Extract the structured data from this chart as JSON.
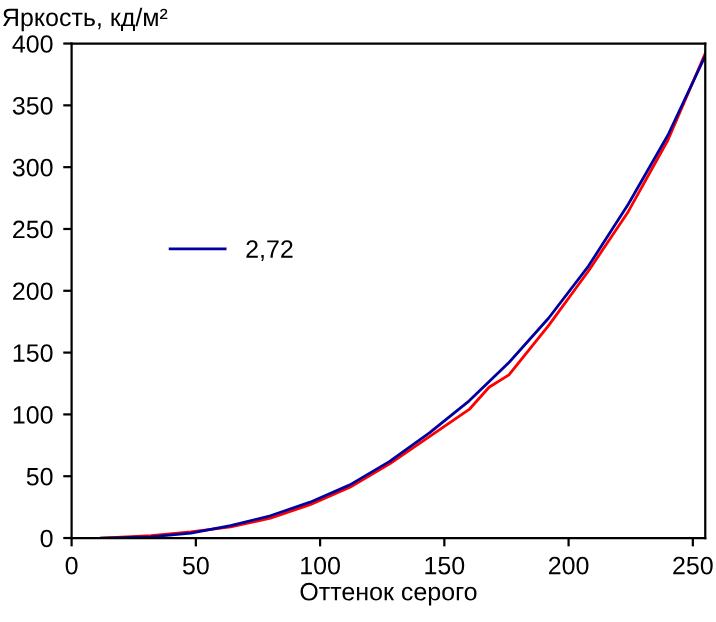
{
  "chart_data": {
    "type": "line",
    "ylabel": "Яркость, кд/м²",
    "xlabel": "Оттенок серого",
    "xlim": [
      0,
      255
    ],
    "ylim": [
      0,
      400
    ],
    "xticks": [
      0,
      50,
      100,
      150,
      200,
      250
    ],
    "yticks": [
      0,
      50,
      100,
      150,
      200,
      250,
      300,
      350,
      400
    ],
    "grid": false,
    "legend": "left",
    "marker": "none",
    "line_style": "solid",
    "series": [
      {
        "color": "#ff0000",
        "x": [
          12,
          32,
          48,
          64,
          80,
          96,
          112,
          128,
          144,
          160,
          168,
          176,
          192,
          208,
          224,
          240,
          255
        ],
        "values": [
          0,
          2,
          5,
          9,
          16,
          27,
          41,
          60,
          82,
          104,
          122,
          132,
          172,
          216,
          264,
          322,
          392
        ]
      },
      {
        "name": "2,72",
        "color": "#0000a0",
        "x": [
          12,
          32,
          48,
          64,
          80,
          96,
          112,
          128,
          144,
          160,
          176,
          192,
          208,
          224,
          240,
          255
        ],
        "values": [
          0,
          1,
          4,
          10,
          18,
          29,
          43,
          62,
          85,
          111,
          142,
          178,
          220,
          270,
          326,
          390
        ]
      }
    ]
  }
}
